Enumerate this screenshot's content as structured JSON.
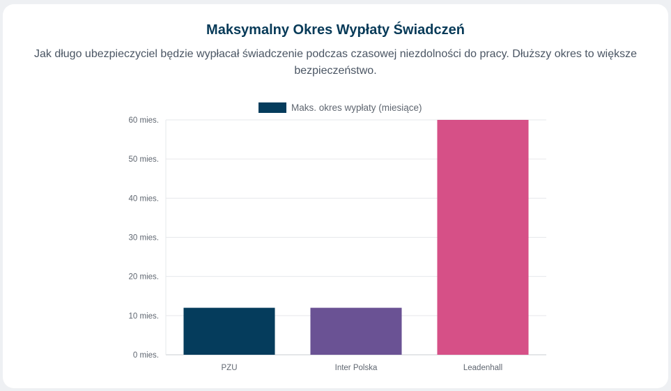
{
  "title": "Maksymalny Okres Wypłaty Świadczeń",
  "subtitle": "Jak długo ubezpieczyciel będzie wypłacał świadczenie podczas czasowej niezdolności do pracy. Dłuższy okres to większe bezpieczeństwo.",
  "chart_data": {
    "type": "bar",
    "title": "Maksymalny Okres Wypłaty Świadczeń",
    "categories": [
      "PZU",
      "Inter Polska",
      "Leadenhall"
    ],
    "series": [
      {
        "name": "Maks. okres wypłaty (miesiące)",
        "values": [
          12,
          12,
          60
        ],
        "colors": [
          "#053c5c",
          "#6a5294",
          "#d65087"
        ],
        "legend_color": "#053c5c"
      }
    ],
    "y_ticks": [
      "0 mies.",
      "10 mies.",
      "20 mies.",
      "30 mies.",
      "40 mies.",
      "50 mies.",
      "60 mies."
    ],
    "ylim": [
      0,
      60
    ],
    "xlabel": "",
    "ylabel": "",
    "grid": true,
    "legend_position": "top-center"
  }
}
